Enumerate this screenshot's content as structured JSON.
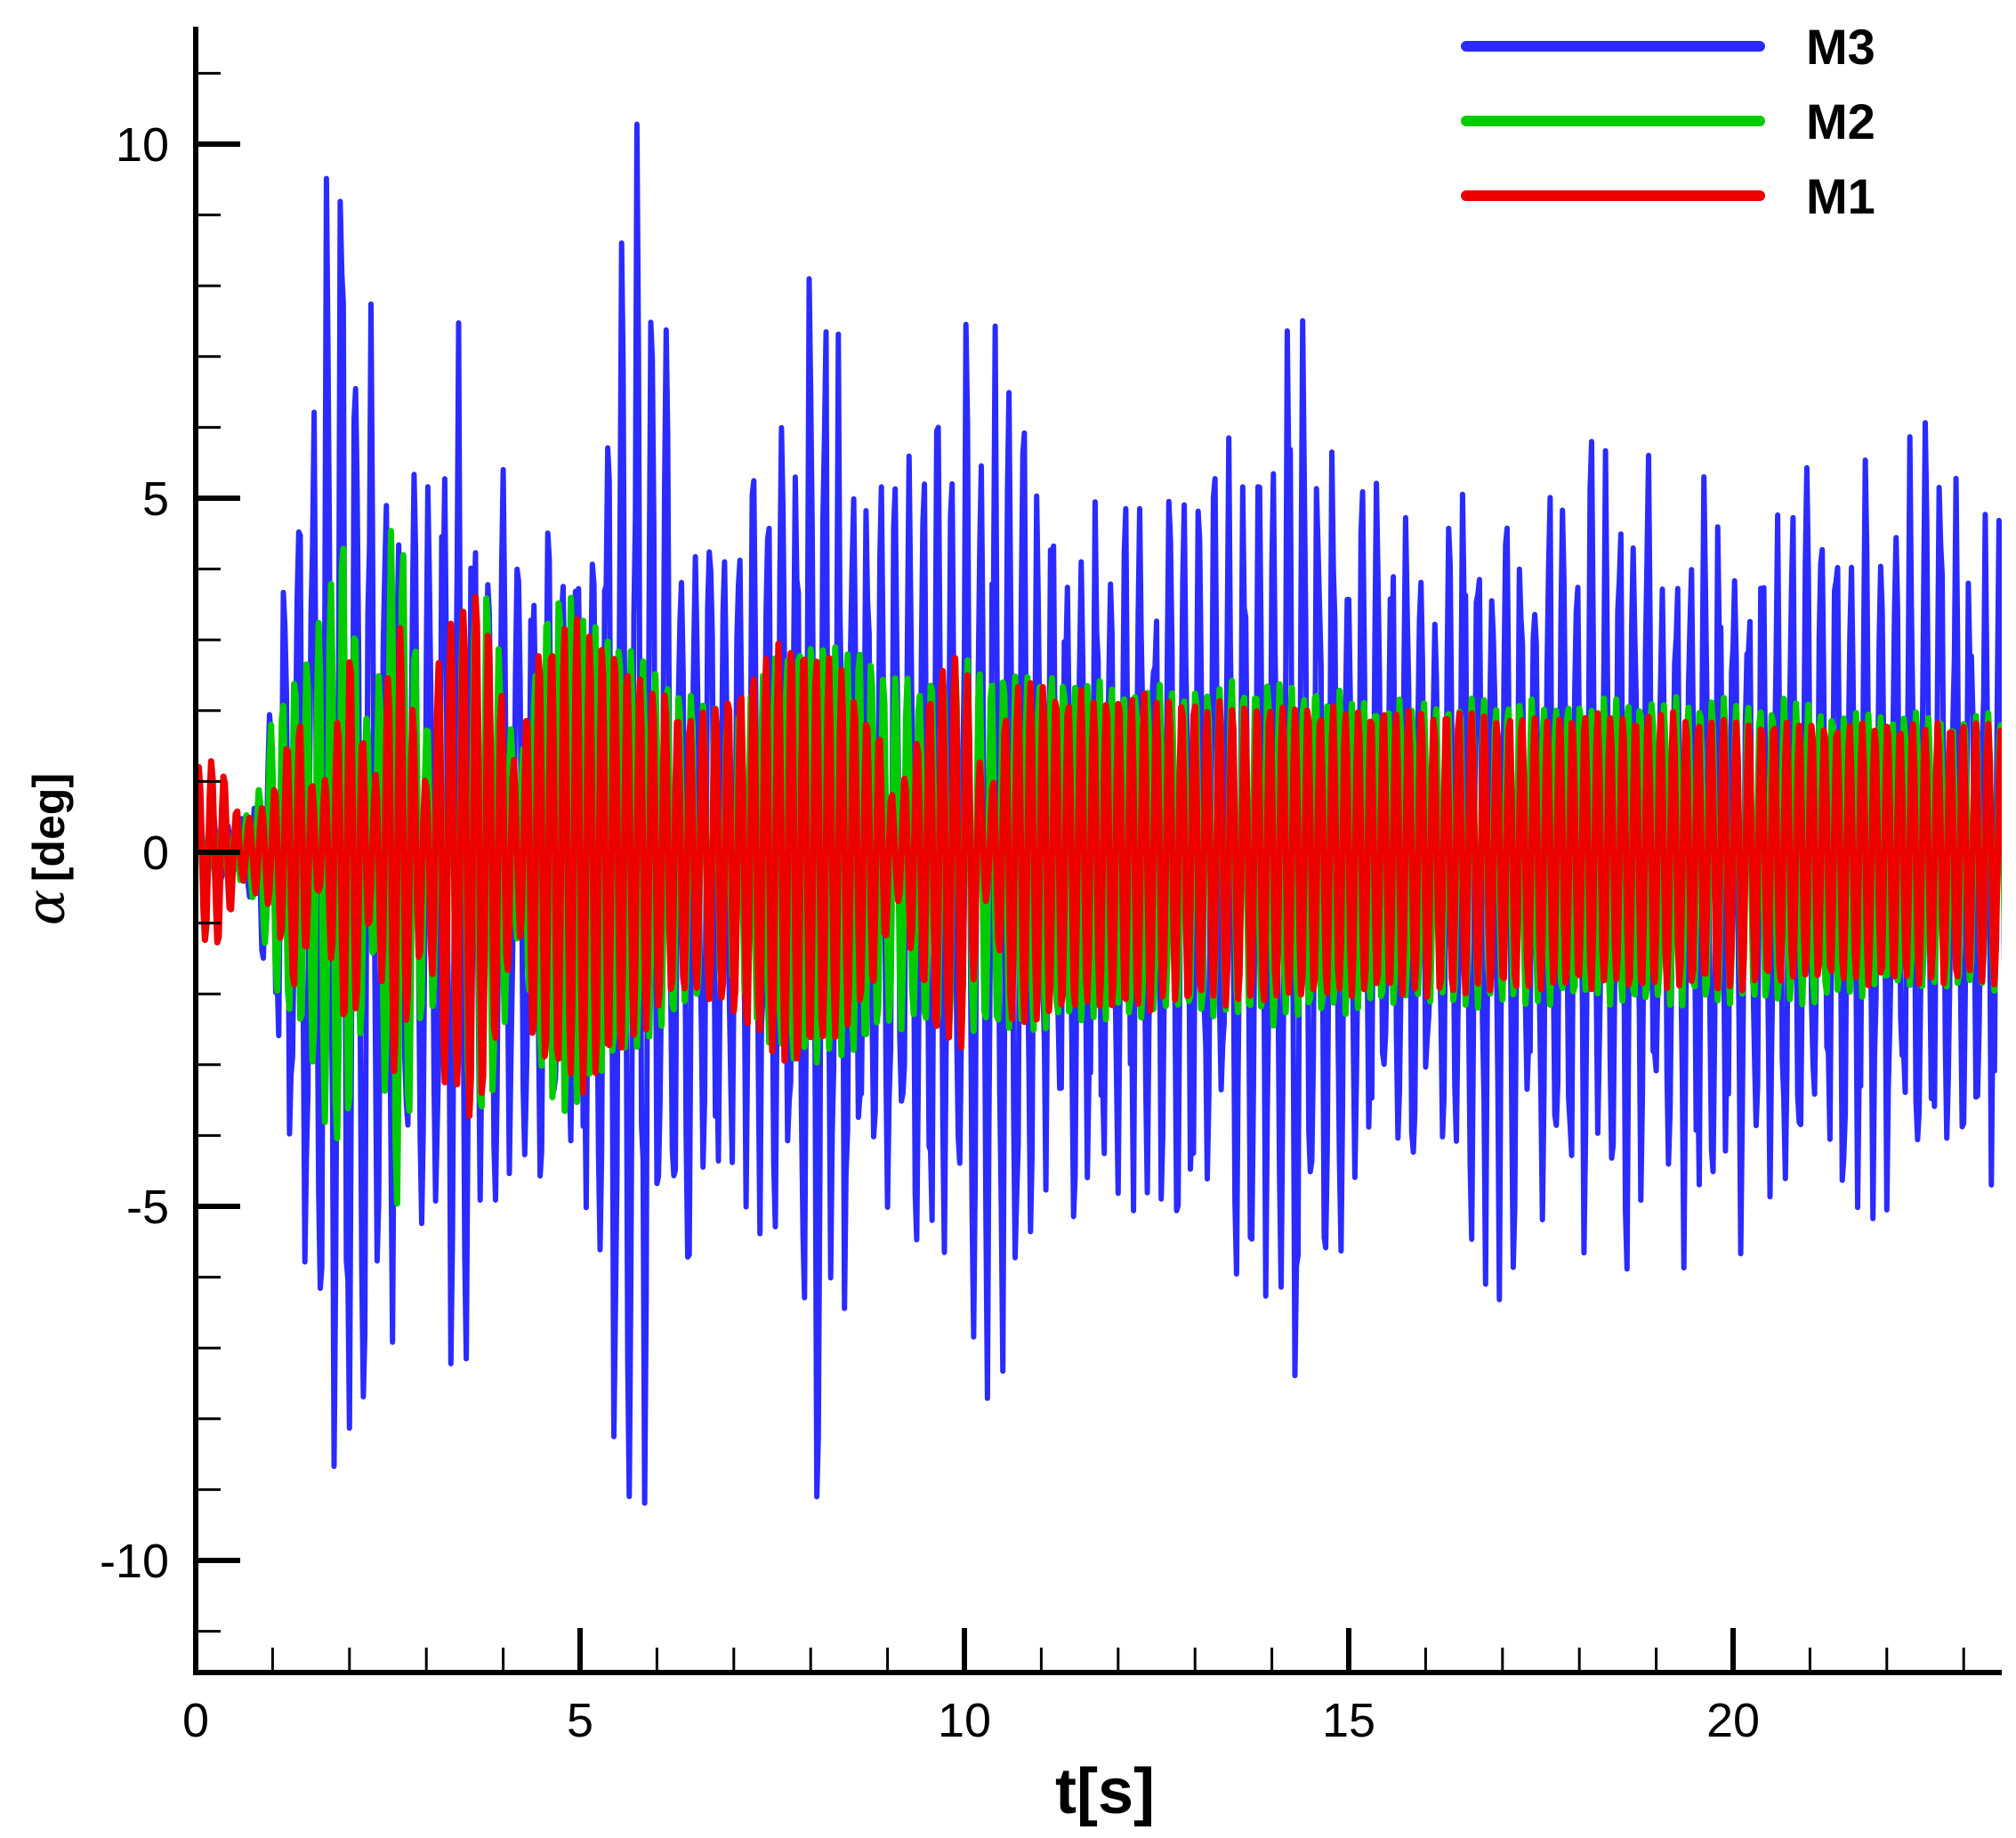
{
  "chart_data": {
    "type": "line",
    "title": "",
    "xlabel": "t[s]",
    "ylabel": {
      "symbol": "α",
      "unit": "[deg]"
    },
    "xlim": [
      0,
      23.6
    ],
    "ylim": [
      -11.6,
      11.6
    ],
    "x_major_ticks": [
      0,
      5,
      10,
      15,
      20
    ],
    "x_tick_labels": [
      "0",
      "5",
      "10",
      "15",
      "20"
    ],
    "y_major_ticks": [
      -10,
      -5,
      0,
      5,
      10
    ],
    "y_tick_labels": [
      "-10",
      "-5",
      "0",
      "5",
      "10"
    ],
    "grid": false,
    "legend_position": "top-right",
    "dt": 0.02,
    "series": [
      {
        "name": "M3",
        "color": "#2b2bff",
        "envelope_t": [
          0,
          0.5,
          0.8,
          1.0,
          1.4,
          1.9,
          2.0,
          2.6,
          3.0,
          3.6,
          4.0,
          4.4,
          5.0,
          5.7,
          6.2,
          7.0,
          7.5,
          8.0,
          8.3,
          9.0,
          10.0,
          10.5,
          11.0,
          12.0,
          13.0,
          14.0,
          14.2,
          15.0,
          16.0,
          17.0,
          18.0,
          19.0,
          20.0,
          21.0,
          22.0,
          22.5,
          23.0,
          23.6
        ],
        "envelope_amp": [
          1.2,
          0.3,
          1.0,
          3.0,
          8.0,
          11.5,
          11.0,
          7.0,
          6.5,
          8.0,
          5.5,
          5.5,
          5.5,
          11.0,
          7.5,
          5.5,
          6.0,
          10.0,
          9.0,
          6.0,
          7.5,
          8.5,
          5.5,
          5.5,
          6.0,
          6.5,
          9.5,
          6.0,
          5.5,
          6.5,
          6.0,
          6.0,
          6.0,
          5.5,
          6.5,
          6.5,
          5.5,
          5.0
        ]
      },
      {
        "name": "M2",
        "color": "#00cc00",
        "envelope_t": [
          0,
          0.5,
          0.8,
          1.0,
          1.5,
          1.9,
          2.3,
          2.6,
          3.0,
          3.4,
          3.8,
          4.2,
          4.6,
          5.0,
          5.6,
          6.2,
          7.0,
          7.6,
          8.0,
          8.6,
          9.0,
          9.4,
          10.0,
          10.4,
          11.0,
          12.0,
          13.0,
          14.0,
          15.0,
          16.0,
          17.0,
          18.0,
          19.0,
          20.0,
          21.0,
          22.0,
          23.0,
          23.6
        ],
        "envelope_amp": [
          1.0,
          0.3,
          0.8,
          2.0,
          3.0,
          4.8,
          1.5,
          5.4,
          2.0,
          3.6,
          4.0,
          1.2,
          4.0,
          3.5,
          3.0,
          2.4,
          2.0,
          3.0,
          3.1,
          3.0,
          2.6,
          2.5,
          2.8,
          2.6,
          2.6,
          2.4,
          2.4,
          2.5,
          2.3,
          2.2,
          2.2,
          2.2,
          2.2,
          2.2,
          2.2,
          2.0,
          2.0,
          2.0
        ]
      },
      {
        "name": "M1",
        "color": "#ee0000",
        "envelope_t": [
          0,
          0.3,
          0.6,
          1.0,
          1.3,
          1.6,
          2.0,
          2.3,
          2.6,
          3.0,
          3.2,
          3.7,
          4.2,
          4.4,
          5.0,
          5.6,
          6.0,
          6.4,
          7.0,
          7.8,
          8.4,
          8.9,
          9.1,
          9.6,
          10.0,
          10.3,
          10.6,
          11.0,
          12.0,
          13.0,
          14.0,
          15.0,
          16.0,
          17.0,
          18.0,
          19.0,
          20.0,
          21.0,
          22.0,
          23.0,
          23.6
        ],
        "envelope_amp": [
          1.3,
          1.4,
          0.4,
          0.8,
          2.2,
          0.6,
          3.0,
          0.8,
          3.6,
          1.0,
          3.4,
          4.0,
          1.0,
          3.0,
          3.5,
          2.8,
          2.4,
          2.0,
          2.4,
          3.2,
          2.6,
          1.8,
          0.6,
          2.6,
          2.9,
          0.6,
          2.5,
          2.4,
          2.3,
          2.2,
          2.2,
          2.1,
          2.1,
          2.0,
          2.0,
          2.0,
          2.0,
          1.9,
          1.9,
          1.9,
          1.9
        ]
      }
    ]
  }
}
